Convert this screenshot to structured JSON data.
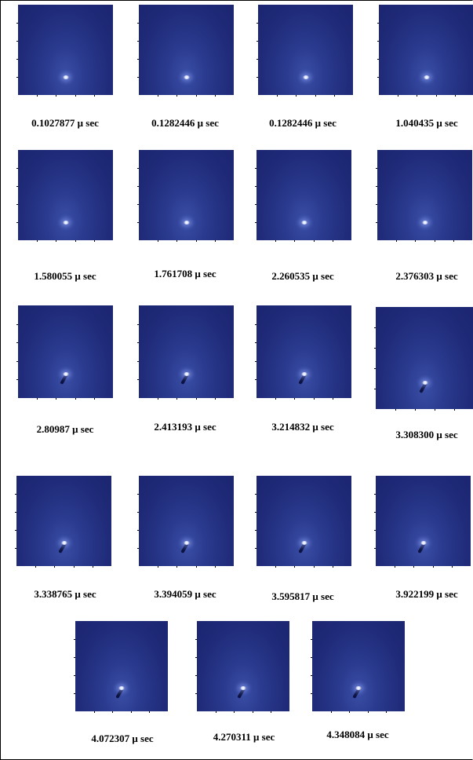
{
  "panels": [
    {
      "caption": "0.1027877 μ sec"
    },
    {
      "caption": "0.1282446 μ sec"
    },
    {
      "caption": "0.1282446 μ sec"
    },
    {
      "caption": "1.040435 μ sec"
    },
    {
      "caption": "1.580055 μ sec"
    },
    {
      "caption": "1.761708 μ sec"
    },
    {
      "caption": "2.260535 μ sec"
    },
    {
      "caption": "2.376303 μ sec"
    },
    {
      "caption": "2.80987 μ sec"
    },
    {
      "caption": "2.413193 μ sec"
    },
    {
      "caption": "3.214832 μ sec"
    },
    {
      "caption": "3.308300 μ sec"
    },
    {
      "caption": "3.338765 μ sec"
    },
    {
      "caption": "3.394059 μ sec"
    },
    {
      "caption": "3.595817 μ sec"
    },
    {
      "caption": "3.922199 μ sec"
    },
    {
      "caption": "4.072307 μ sec"
    },
    {
      "caption": "4.270311 μ sec"
    },
    {
      "caption": "4.348084 μ sec"
    }
  ]
}
